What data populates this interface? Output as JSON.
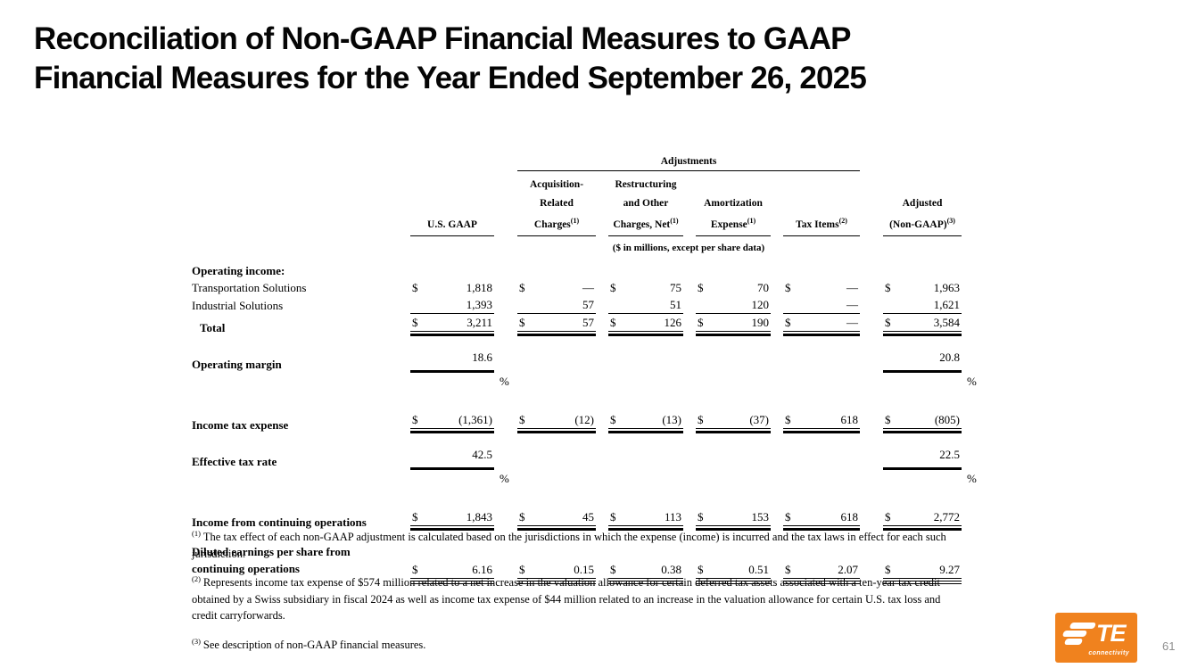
{
  "title": {
    "line1": "Reconciliation of Non-GAAP Financial Measures to GAAP",
    "line2": "Financial Measures for the Year Ended September 26, 2025"
  },
  "table": {
    "adjustments_label": "Adjustments",
    "subtitle": "($ in millions, except per share data)",
    "pct_symbol": "%",
    "columns": [
      {
        "lines": [
          "U.S. GAAP"
        ],
        "sup": ""
      },
      {
        "lines": [
          "Acquisition-",
          "Related",
          "Charges"
        ],
        "sup": "(1)"
      },
      {
        "lines": [
          "Restructuring",
          "and Other",
          "Charges, Net"
        ],
        "sup": "(1)"
      },
      {
        "lines": [
          "Amortization",
          "Expense"
        ],
        "sup": "(1)"
      },
      {
        "lines": [
          "Tax Items"
        ],
        "sup": "(2)"
      },
      {
        "lines": [
          "Adjusted",
          "(Non-GAAP)"
        ],
        "sup": "(3)"
      }
    ],
    "rows": [
      {
        "label": "Operating income:",
        "bold": true,
        "type": "section"
      },
      {
        "label": "Transportation Solutions",
        "type": "item",
        "cells": [
          [
            "$",
            "1,818"
          ],
          [
            "$",
            "—"
          ],
          [
            "$",
            "75"
          ],
          [
            "$",
            "70"
          ],
          [
            "$",
            "—"
          ],
          [
            "$",
            "1,963"
          ]
        ]
      },
      {
        "label": "Industrial Solutions",
        "type": "item",
        "rule": "single",
        "cells": [
          [
            "",
            "1,393"
          ],
          [
            "",
            "57"
          ],
          [
            "",
            "51"
          ],
          [
            "",
            "120"
          ],
          [
            "",
            "—"
          ],
          [
            "",
            "1,621"
          ]
        ]
      },
      {
        "label": "Total",
        "bold": true,
        "indent": true,
        "type": "item",
        "rule": "total",
        "cells": [
          [
            "$",
            "3,211"
          ],
          [
            "$",
            "57"
          ],
          [
            "$",
            "126"
          ],
          [
            "$",
            "190"
          ],
          [
            "$",
            "—"
          ],
          [
            "$",
            "3,584"
          ]
        ]
      },
      {
        "label": "Operating margin",
        "bold": true,
        "type": "standalone",
        "rule": "bar",
        "pct": true,
        "cells": [
          [
            "",
            "18.6"
          ],
          null,
          null,
          null,
          null,
          [
            "",
            "20.8"
          ]
        ]
      },
      {
        "label": "Income tax expense",
        "bold": true,
        "type": "standalone",
        "rule": "total",
        "cells": [
          [
            "$",
            "(1,361)"
          ],
          [
            "$",
            "(12)"
          ],
          [
            "$",
            "(13)"
          ],
          [
            "$",
            "(37)"
          ],
          [
            "$",
            "618"
          ],
          [
            "$",
            "(805)"
          ]
        ]
      },
      {
        "label": "Effective tax rate",
        "bold": true,
        "type": "standalone",
        "rule": "bar",
        "pct": true,
        "cells": [
          [
            "",
            "42.5"
          ],
          null,
          null,
          null,
          null,
          [
            "",
            "22.5"
          ]
        ]
      },
      {
        "label": "Income from continuing operations",
        "bold": true,
        "type": "standalone",
        "rule": "total",
        "cells": [
          [
            "$",
            "1,843"
          ],
          [
            "$",
            "45"
          ],
          [
            "$",
            "113"
          ],
          [
            "$",
            "153"
          ],
          [
            "$",
            "618"
          ],
          [
            "$",
            "2,772"
          ]
        ]
      },
      {
        "label_lines": [
          "Diluted earnings per share from",
          "continuing operations"
        ],
        "bold": true,
        "type": "eps",
        "rule": "double",
        "cells": [
          [
            "$",
            "6.16"
          ],
          [
            "$",
            "0.15"
          ],
          [
            "$",
            "0.38"
          ],
          [
            "$",
            "0.51"
          ],
          [
            "$",
            "2.07"
          ],
          [
            "$",
            "9.27"
          ]
        ]
      }
    ]
  },
  "footnotes": [
    {
      "sup": "(1)",
      "text": "The tax effect of each non-GAAP adjustment is calculated based on the jurisdictions in which the expense (income) is incurred and the tax laws in effect for each such jurisdiction."
    },
    {
      "sup": "(2)",
      "text": "Represents income tax expense of $574 million related to a net increase in the valuation allowance for certain deferred tax assets associated with a ten-year tax credit obtained by a Swiss subsidiary in fiscal 2024 as well as income tax expense of $44 million related to an increase in the valuation allowance for certain U.S. tax loss and credit carryforwards."
    },
    {
      "sup": "(3)",
      "text": "See description of non-GAAP financial measures."
    }
  ],
  "logo": {
    "brand": "TE",
    "sub": "connectivity",
    "color": "#F0821E"
  },
  "page_number": "61"
}
